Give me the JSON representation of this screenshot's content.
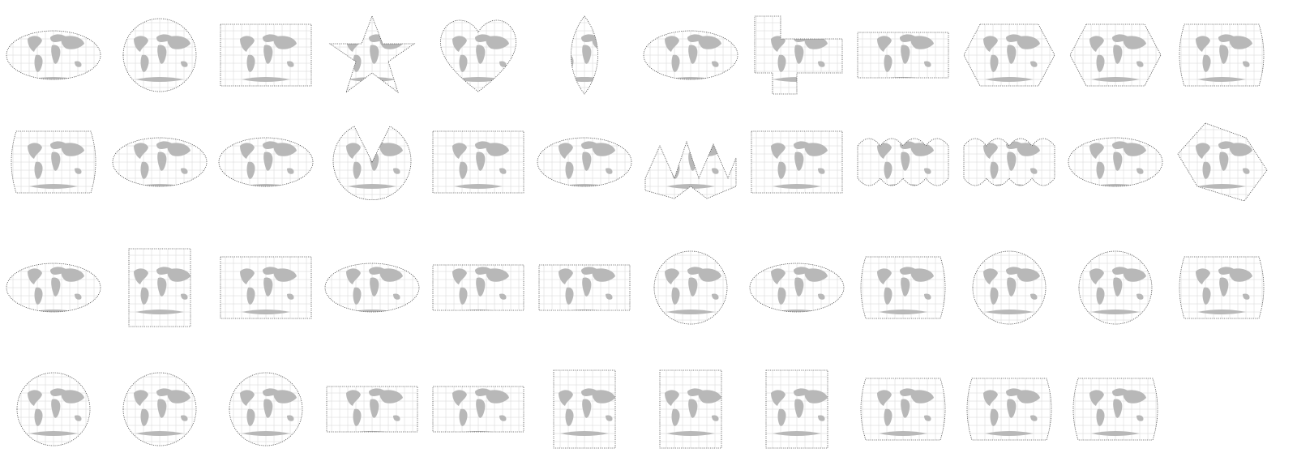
{
  "gallery": {
    "rows": [
      [
        "ellipse",
        "globe",
        "rectangle",
        "star",
        "heart",
        "lens",
        "ellipse",
        "interrupted",
        "band",
        "hexagon",
        "hexagon",
        "rounded"
      ],
      [
        "rounded",
        "ellipse",
        "ellipse",
        "fan",
        "rectangle",
        "ellipse",
        "butterfly",
        "rectangle",
        "lobed",
        "lobed",
        "ellipse",
        "oblique"
      ],
      [
        "ellipse",
        "square",
        "rectangle",
        "ellipse",
        "band",
        "band",
        "globe",
        "ellipse",
        "rounded",
        "globe",
        "globe",
        "rounded"
      ],
      [
        "globe",
        "globe",
        "globe",
        "band",
        "band",
        "square",
        "square",
        "square",
        "rounded",
        "rounded",
        "rounded"
      ]
    ]
  },
  "colors": {
    "land": "#b8b8b8",
    "ocean": "#ffffff",
    "graticule": "#d6d6d6",
    "border": "#555555",
    "background": "#ffffff"
  }
}
